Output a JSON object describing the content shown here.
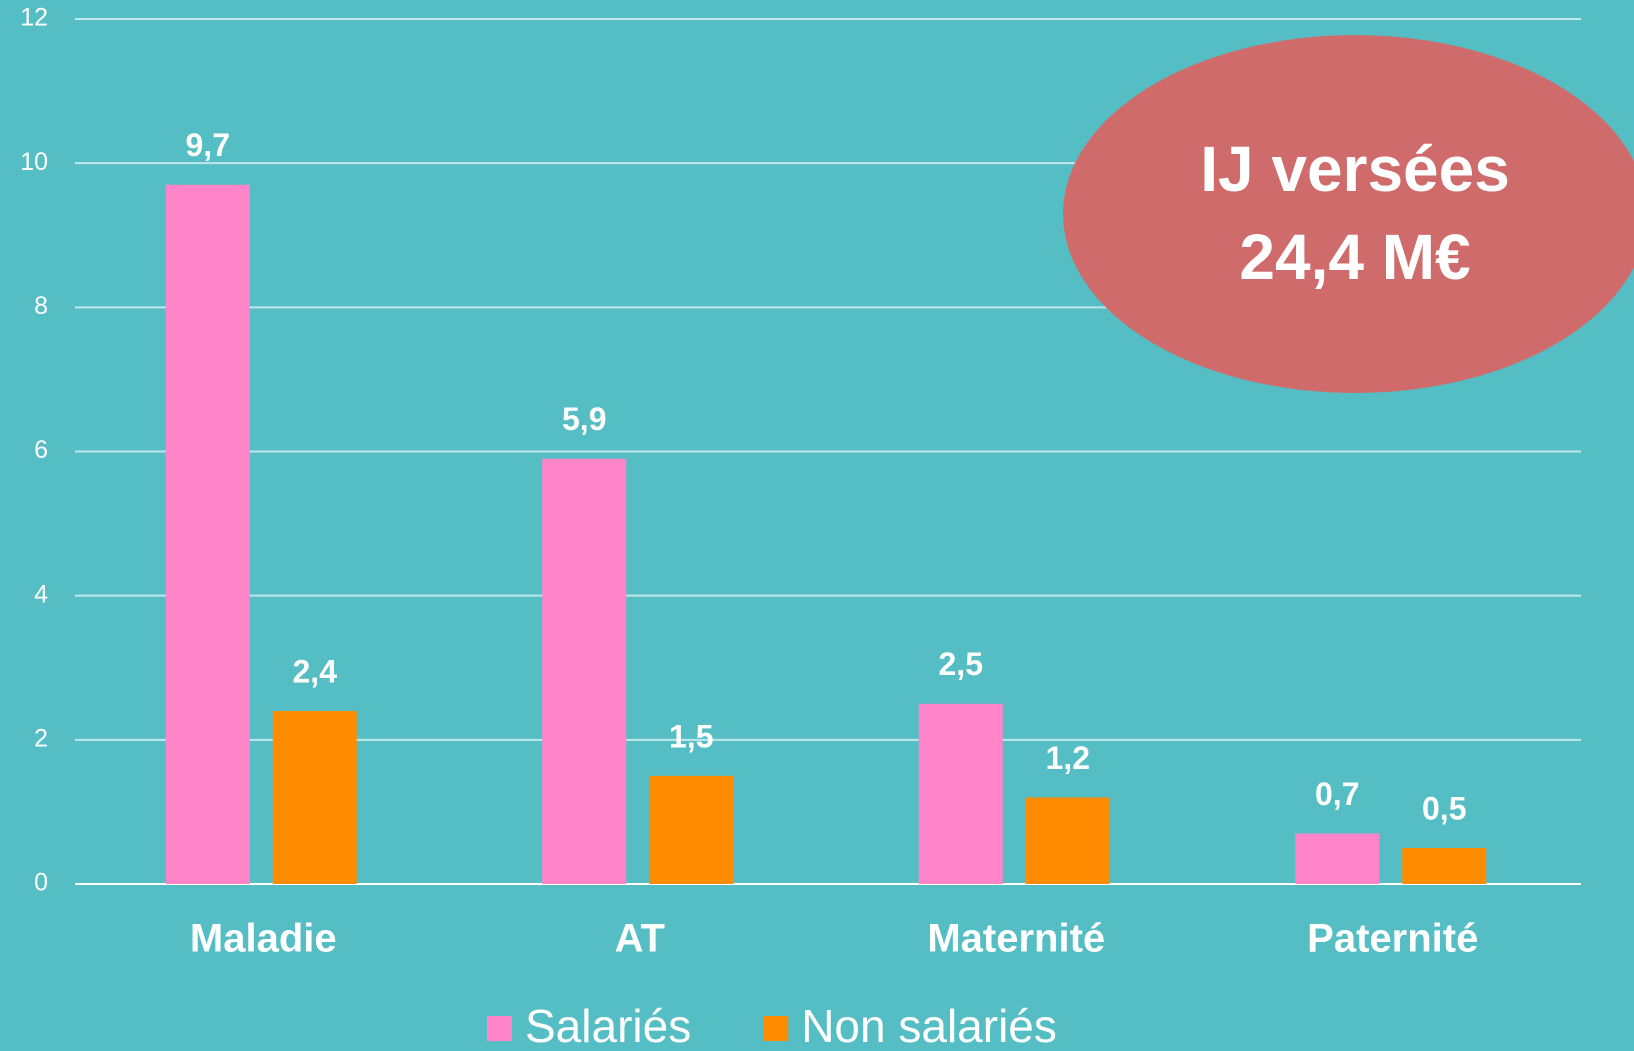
{
  "chart_data": {
    "type": "bar",
    "categories": [
      "Maladie",
      "AT",
      "Maternité",
      "Paternité"
    ],
    "series": [
      {
        "name": "Salariés",
        "color": "#ff85c8",
        "values": [
          9.7,
          5.9,
          2.5,
          0.7
        ],
        "value_labels": [
          "9,7",
          "5,9",
          "2,5",
          "0,7"
        ]
      },
      {
        "name": "Non salariés",
        "color": "#ff8c00",
        "values": [
          2.4,
          1.5,
          1.2,
          0.5
        ],
        "value_labels": [
          "2,4",
          "1,5",
          "1,2",
          "0,5"
        ]
      }
    ],
    "ylim": [
      0,
      12
    ],
    "yticks": [
      0,
      2,
      4,
      6,
      8,
      10,
      12
    ],
    "grid": true,
    "legend": "bottom",
    "annotation": {
      "lines": [
        "IJ versées",
        "24,4 M€"
      ],
      "color": "#cf6b6b"
    }
  }
}
